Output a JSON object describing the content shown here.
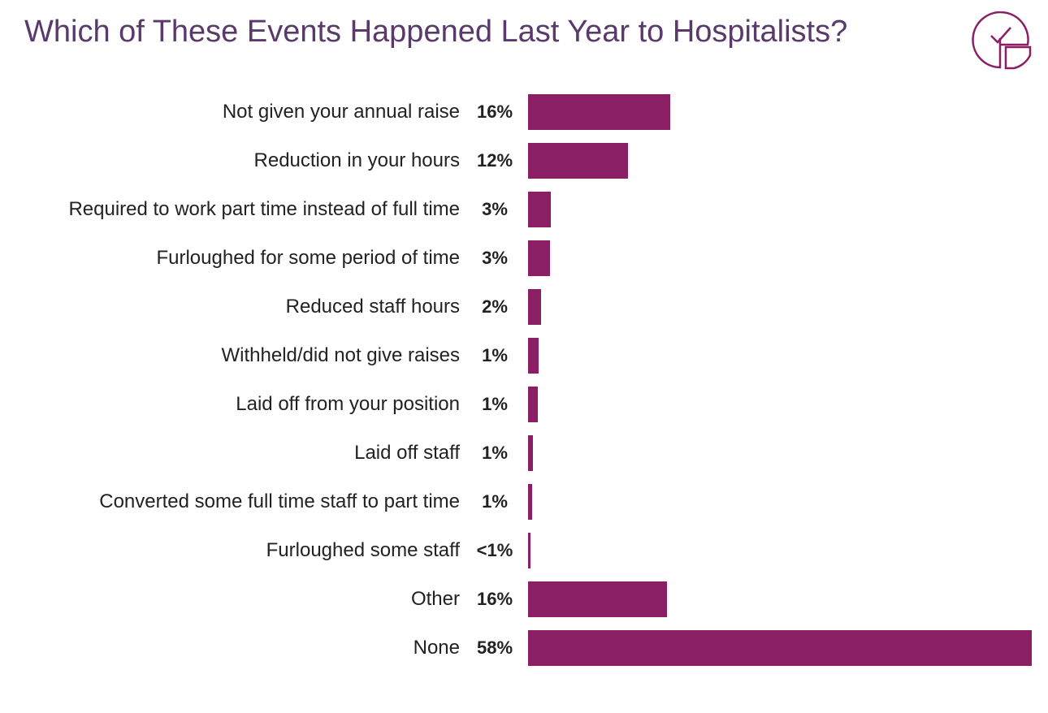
{
  "chart_data": {
    "type": "bar",
    "orientation": "horizontal",
    "title": "Which of These Events Happened Last Year to Hospitalists?",
    "categories": [
      "Not given your annual raise",
      "Reduction in your hours",
      "Required to work part time instead of full time",
      "Furloughed for some period of time",
      "Reduced staff hours",
      "Withheld/did not give raises",
      "Laid off from your position",
      "Laid off staff",
      "Converted some full time staff to part time",
      "Furloughed some staff",
      "Other",
      "None"
    ],
    "values": [
      16.4,
      11.5,
      2.6,
      2.5,
      1.5,
      1.2,
      1.1,
      0.6,
      0.5,
      0.3,
      16,
      58
    ],
    "value_labels": [
      "16%",
      "12%",
      "3%",
      "3%",
      "2%",
      "1%",
      "1%",
      "1%",
      "1%",
      "<1%",
      "16%",
      "58%"
    ],
    "color": "#8a2063"
  }
}
